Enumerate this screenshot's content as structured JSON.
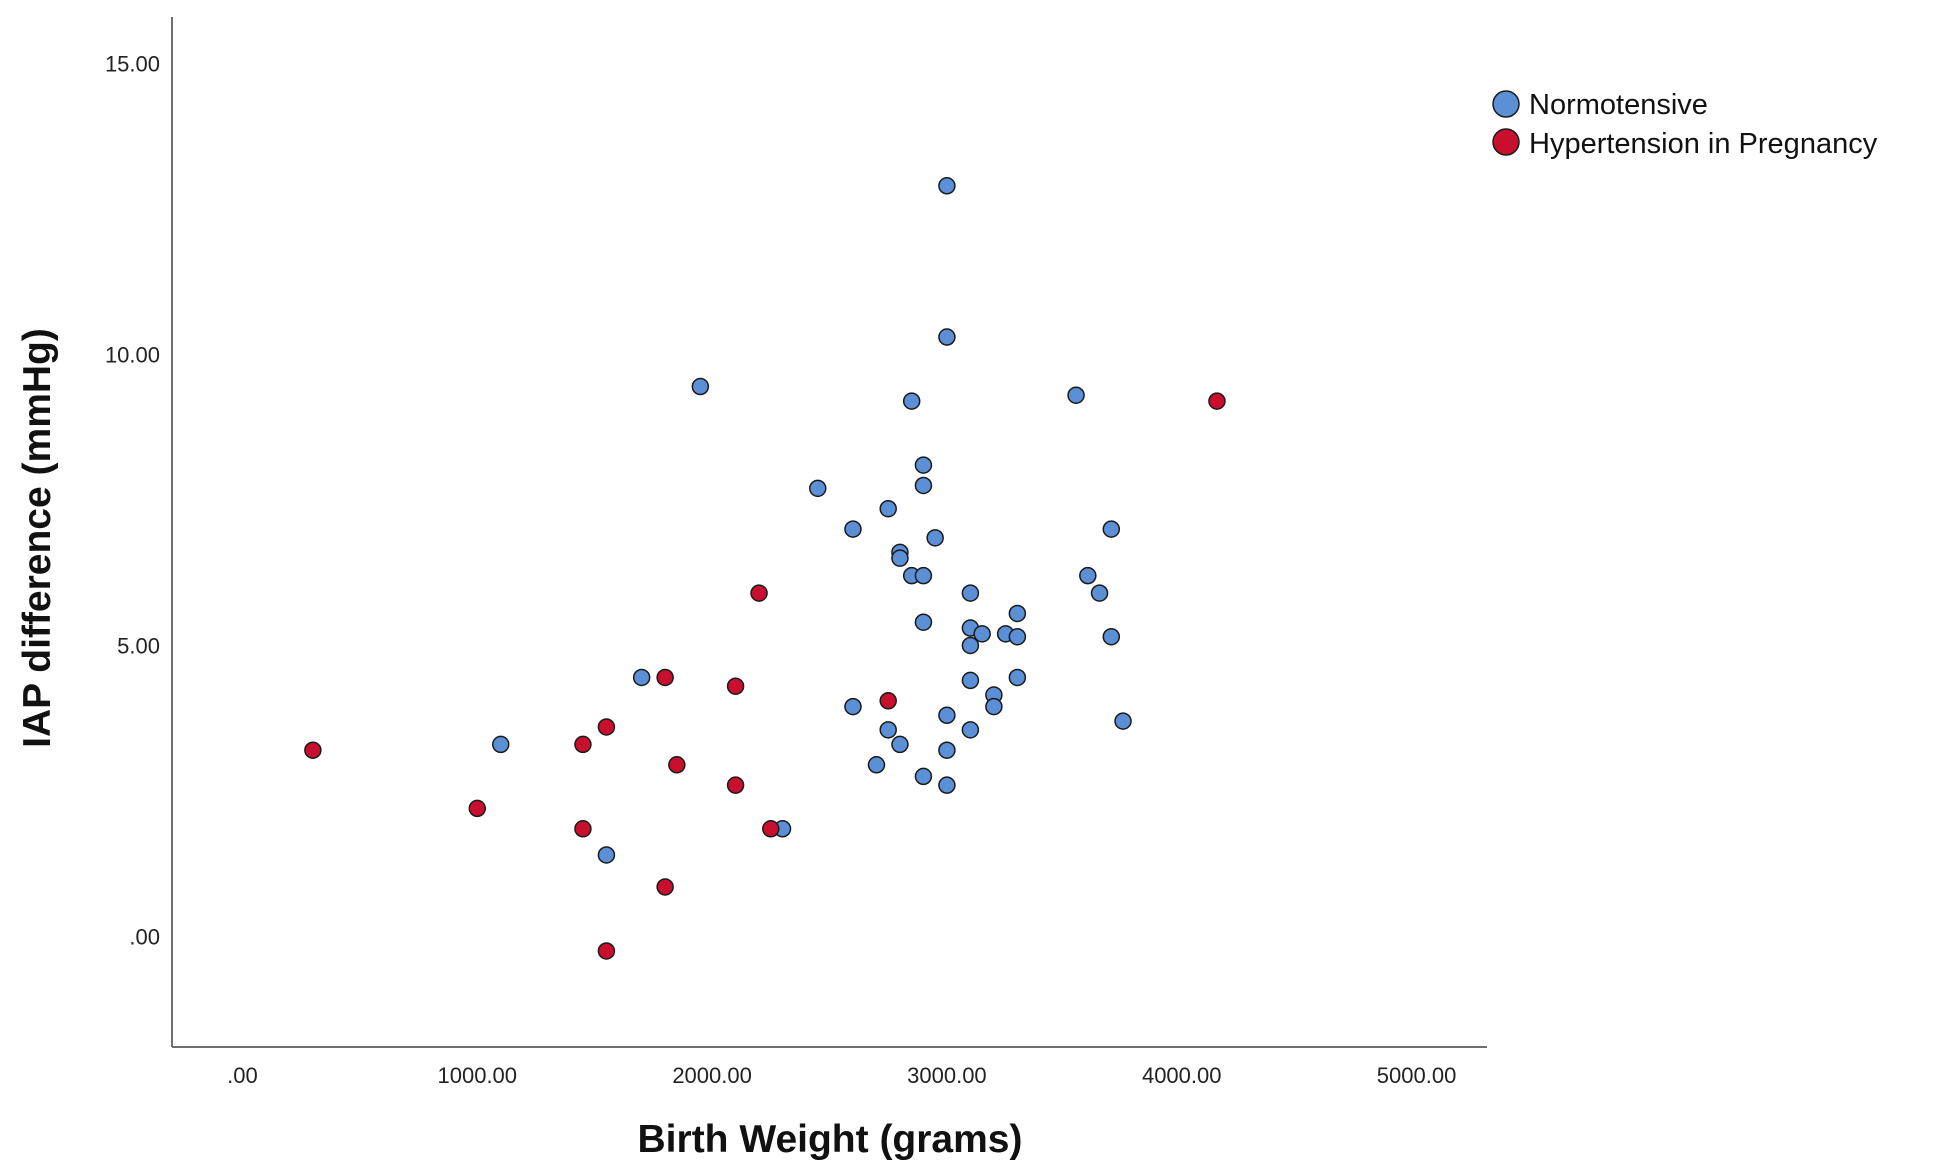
{
  "chart_data": {
    "type": "scatter",
    "title": "",
    "xlabel": "Birth Weight (grams)",
    "ylabel": "IAP difference (mmHg)",
    "xlim": [
      -300,
      5300
    ],
    "ylim": [
      -1.9,
      15.8
    ],
    "xticks": [
      0,
      1000,
      2000,
      3000,
      4000,
      5000
    ],
    "xtick_labels": [
      ".00",
      "1000.00",
      "2000.00",
      "3000.00",
      "4000.00",
      "5000.00"
    ],
    "yticks": [
      0,
      5,
      10,
      15
    ],
    "ytick_labels": [
      ".00",
      "5.00",
      "10.00",
      "15.00"
    ],
    "grid": false,
    "legend_position": "top-right",
    "series": [
      {
        "name": "Normotensive",
        "color": "#5b8fd6",
        "points": [
          [
            3000,
            12.9
          ],
          [
            3000,
            10.3
          ],
          [
            1950,
            9.45
          ],
          [
            3550,
            9.3
          ],
          [
            2850,
            9.2
          ],
          [
            2900,
            8.1
          ],
          [
            2900,
            7.75
          ],
          [
            2450,
            7.7
          ],
          [
            2750,
            7.35
          ],
          [
            2600,
            7.0
          ],
          [
            3700,
            7.0
          ],
          [
            2950,
            6.85
          ],
          [
            2800,
            6.6
          ],
          [
            2800,
            6.5
          ],
          [
            2850,
            6.2
          ],
          [
            2900,
            6.2
          ],
          [
            3600,
            6.2
          ],
          [
            3100,
            5.9
          ],
          [
            3650,
            5.9
          ],
          [
            3300,
            5.55
          ],
          [
            2900,
            5.4
          ],
          [
            3100,
            5.3
          ],
          [
            3150,
            5.2
          ],
          [
            3250,
            5.2
          ],
          [
            3300,
            5.15
          ],
          [
            3700,
            5.15
          ],
          [
            3100,
            5.0
          ],
          [
            1700,
            4.45
          ],
          [
            3300,
            4.45
          ],
          [
            3100,
            4.4
          ],
          [
            3200,
            4.15
          ],
          [
            3200,
            3.95
          ],
          [
            2600,
            3.95
          ],
          [
            3000,
            3.8
          ],
          [
            3750,
            3.7
          ],
          [
            2750,
            3.55
          ],
          [
            3100,
            3.55
          ],
          [
            1100,
            3.3
          ],
          [
            2800,
            3.3
          ],
          [
            3000,
            3.2
          ],
          [
            2700,
            2.95
          ],
          [
            2900,
            2.75
          ],
          [
            3000,
            2.6
          ],
          [
            2300,
            1.85
          ],
          [
            1550,
            1.4
          ]
        ]
      },
      {
        "name": "Hypertension in Pregnancy",
        "color": "#c8102e",
        "points": [
          [
            4150,
            9.2
          ],
          [
            2200,
            5.9
          ],
          [
            1800,
            4.45
          ],
          [
            2100,
            4.3
          ],
          [
            2750,
            4.05
          ],
          [
            1550,
            3.6
          ],
          [
            1450,
            3.3
          ],
          [
            300,
            3.2
          ],
          [
            1850,
            2.95
          ],
          [
            2100,
            2.6
          ],
          [
            1000,
            2.2
          ],
          [
            1450,
            1.85
          ],
          [
            2250,
            1.85
          ],
          [
            1800,
            0.85
          ],
          [
            1550,
            -0.25
          ]
        ]
      }
    ]
  }
}
